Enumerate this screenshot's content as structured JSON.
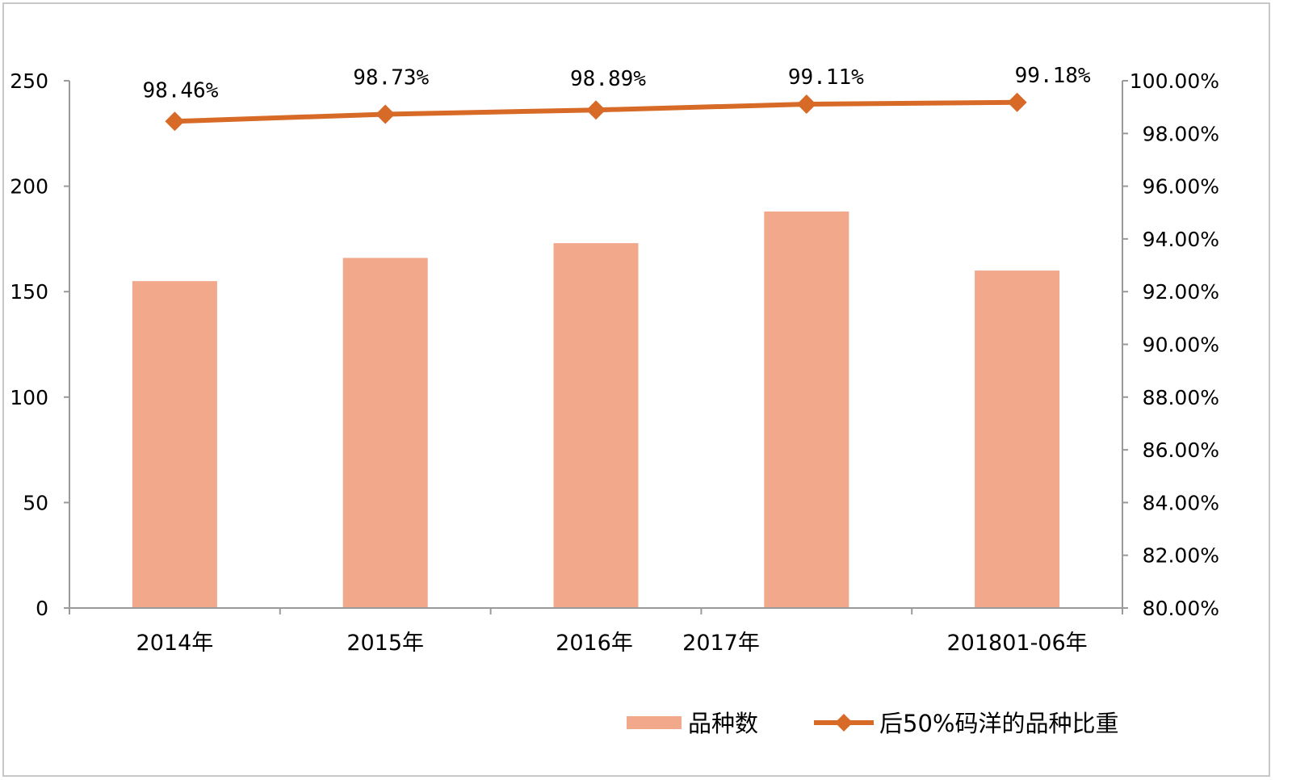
{
  "chart_data": {
    "type": "bar",
    "categories": [
      "2014年",
      "2015年",
      "2016年",
      "2017年",
      "201801-06年"
    ],
    "series": [
      {
        "name": "品种数",
        "type": "bar",
        "axis": "left",
        "color": "#F2A88B",
        "values": [
          155,
          166,
          173,
          188,
          160
        ]
      },
      {
        "name": "后50%码洋的品种比重",
        "type": "line",
        "axis": "right",
        "color": "#D86A27",
        "values": [
          98.46,
          98.73,
          98.89,
          99.11,
          99.18
        ],
        "labels": [
          "98.46%",
          "98.73%",
          "98.89%",
          "99.11%",
          "99.18%"
        ]
      }
    ],
    "y_left": {
      "min": 0,
      "max": 250,
      "ticks": [
        "0",
        "50",
        "100",
        "150",
        "200",
        "250"
      ]
    },
    "y_right": {
      "min": 80,
      "max": 100,
      "ticks": [
        "80.00%",
        "82.00%",
        "84.00%",
        "86.00%",
        "88.00%",
        "90.00%",
        "92.00%",
        "94.00%",
        "96.00%",
        "98.00%",
        "100.00%"
      ]
    },
    "title": "",
    "legend_position": "bottom-right",
    "grid": false
  }
}
